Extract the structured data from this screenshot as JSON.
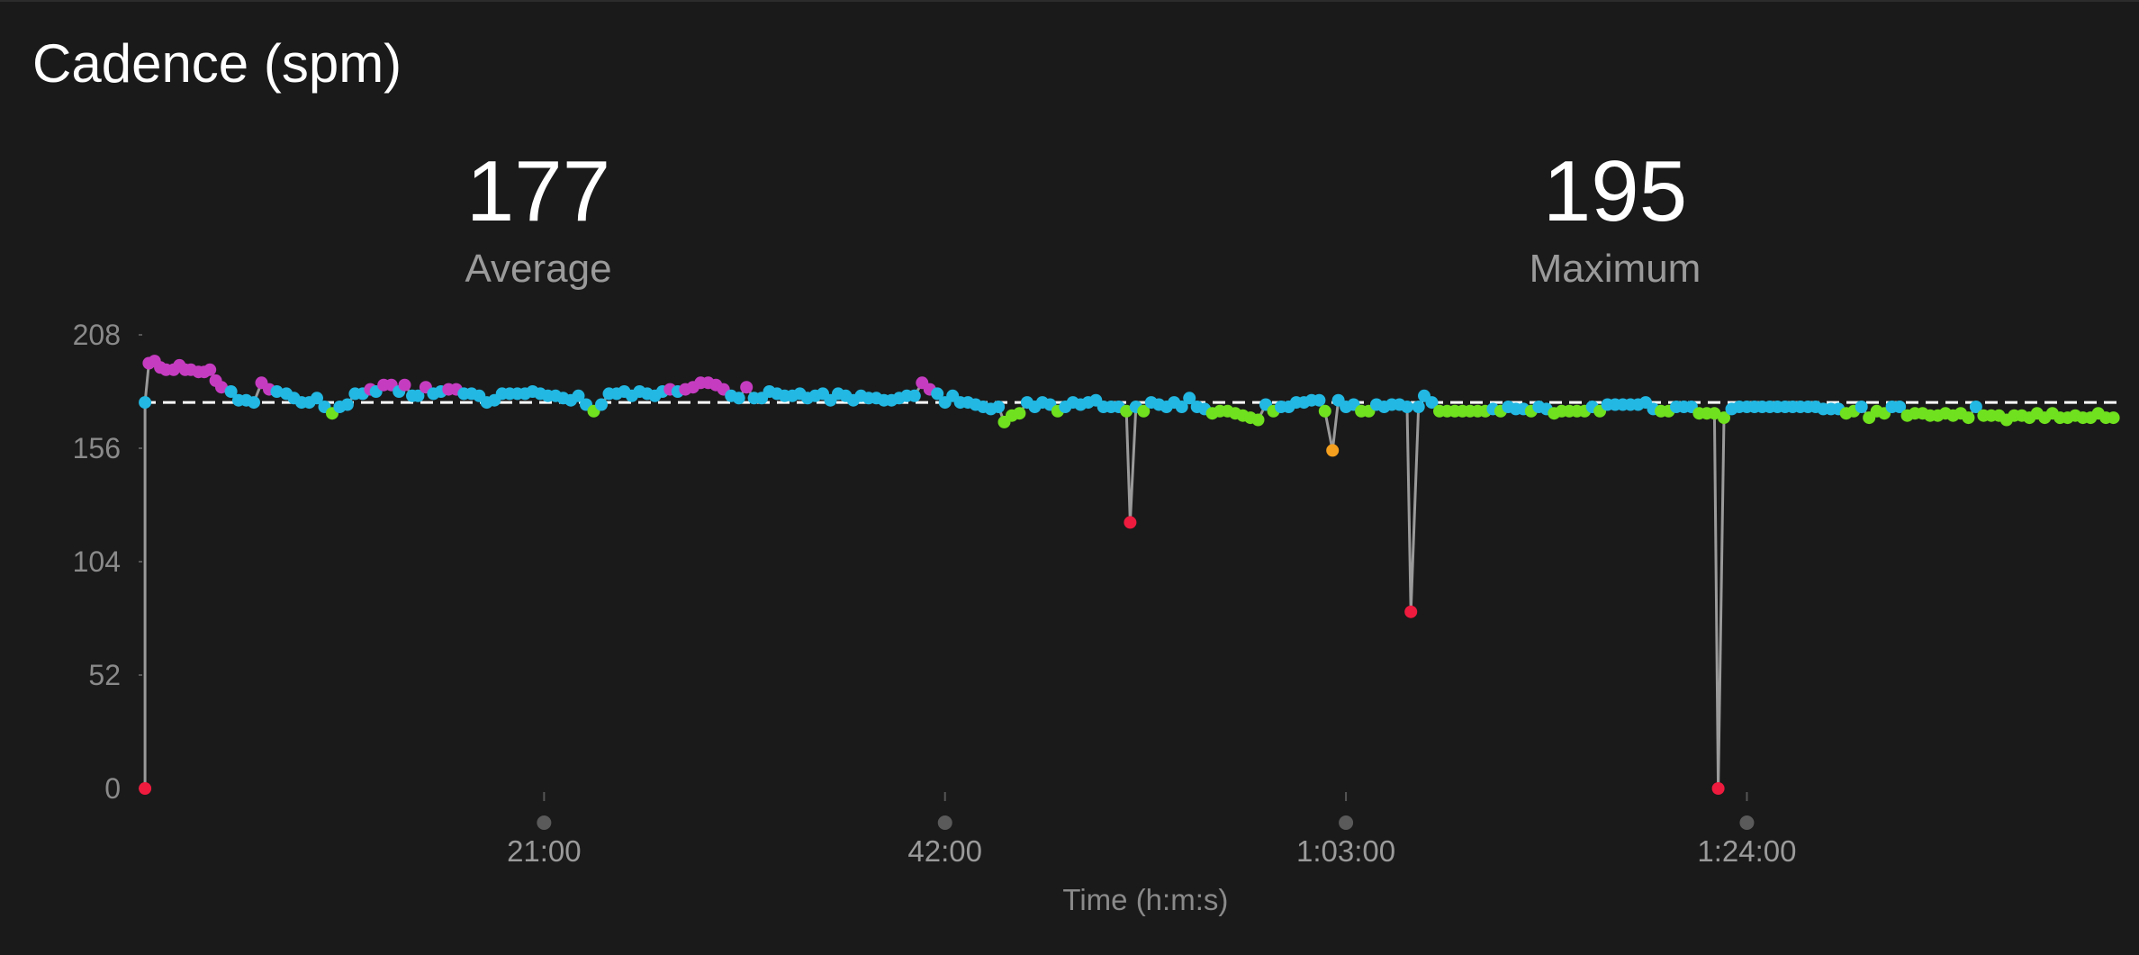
{
  "title": "Cadence (spm)",
  "stats": [
    {
      "value": "177",
      "label": "Average"
    },
    {
      "value": "195",
      "label": "Maximum"
    }
  ],
  "chart_data": {
    "type": "scatter",
    "title": "Cadence (spm)",
    "xlabel": "Time (h:m:s)",
    "ylabel": "",
    "unit": "spm",
    "xlim_minutes": [
      0,
      103.5
    ],
    "ylim": [
      0,
      208
    ],
    "yticks": [
      0,
      52,
      104,
      156,
      208
    ],
    "xticks": [
      {
        "minutes": 21,
        "label": "21:00"
      },
      {
        "minutes": 42,
        "label": "42:00"
      },
      {
        "minutes": 63,
        "label": "1:03:00"
      },
      {
        "minutes": 84,
        "label": "1:24:00"
      }
    ],
    "average_line": 177,
    "colors": {
      "background": "#1a1a1a",
      "line": "#9a9a9a",
      "average": "#ffffff",
      "purple": "#c53cc0",
      "blue": "#22b8e3",
      "green": "#6fe11e",
      "orange": "#f5a01f",
      "red": "#ee1b3e"
    },
    "grid": false,
    "legend": "none",
    "points_minutes_spm": [
      [
        0.1,
        0
      ],
      [
        0.1,
        177
      ],
      [
        0.3,
        195
      ],
      [
        0.6,
        196
      ],
      [
        0.9,
        193
      ],
      [
        1.2,
        192
      ],
      [
        1.6,
        192
      ],
      [
        1.9,
        194
      ],
      [
        2.2,
        192
      ],
      [
        2.5,
        192
      ],
      [
        2.9,
        191
      ],
      [
        3.2,
        191
      ],
      [
        3.5,
        192
      ],
      [
        3.8,
        187
      ],
      [
        4.1,
        184
      ],
      [
        4.6,
        182
      ],
      [
        5.0,
        178
      ],
      [
        5.4,
        178
      ],
      [
        5.8,
        177
      ],
      [
        6.2,
        186
      ],
      [
        6.6,
        183
      ],
      [
        7.0,
        182
      ],
      [
        7.5,
        181
      ],
      [
        7.9,
        179
      ],
      [
        8.3,
        177
      ],
      [
        8.7,
        177
      ],
      [
        9.1,
        179
      ],
      [
        9.5,
        175
      ],
      [
        9.9,
        172
      ],
      [
        10.3,
        175
      ],
      [
        10.7,
        176
      ],
      [
        11.1,
        181
      ],
      [
        11.5,
        181
      ],
      [
        11.9,
        183
      ],
      [
        12.2,
        182
      ],
      [
        12.6,
        185
      ],
      [
        13.0,
        185
      ],
      [
        13.4,
        182
      ],
      [
        13.7,
        185
      ],
      [
        14.1,
        180
      ],
      [
        14.4,
        180
      ],
      [
        14.8,
        184
      ],
      [
        15.2,
        181
      ],
      [
        15.6,
        182
      ],
      [
        16.0,
        183
      ],
      [
        16.4,
        183
      ],
      [
        16.8,
        181
      ],
      [
        17.2,
        181
      ],
      [
        17.6,
        180
      ],
      [
        18.0,
        177
      ],
      [
        18.4,
        178
      ],
      [
        18.8,
        181
      ],
      [
        19.2,
        181
      ],
      [
        19.6,
        181
      ],
      [
        20.0,
        181
      ],
      [
        20.4,
        182
      ],
      [
        20.8,
        181
      ],
      [
        21.2,
        180
      ],
      [
        21.6,
        180
      ],
      [
        22.0,
        179
      ],
      [
        22.4,
        178
      ],
      [
        22.8,
        180
      ],
      [
        23.2,
        176
      ],
      [
        23.6,
        173
      ],
      [
        24.0,
        176
      ],
      [
        24.4,
        181
      ],
      [
        24.8,
        181
      ],
      [
        25.2,
        182
      ],
      [
        25.6,
        180
      ],
      [
        26.0,
        182
      ],
      [
        26.4,
        181
      ],
      [
        26.8,
        180
      ],
      [
        27.2,
        182
      ],
      [
        27.6,
        183
      ],
      [
        28.0,
        182
      ],
      [
        28.4,
        183
      ],
      [
        28.8,
        184
      ],
      [
        29.2,
        186
      ],
      [
        29.6,
        186
      ],
      [
        30.0,
        185
      ],
      [
        30.4,
        183
      ],
      [
        30.8,
        180
      ],
      [
        31.2,
        179
      ],
      [
        31.6,
        184
      ],
      [
        32.0,
        179
      ],
      [
        32.4,
        179
      ],
      [
        32.8,
        182
      ],
      [
        33.2,
        181
      ],
      [
        33.6,
        180
      ],
      [
        34.0,
        180
      ],
      [
        34.4,
        181
      ],
      [
        34.8,
        179
      ],
      [
        35.2,
        180
      ],
      [
        35.6,
        181
      ],
      [
        36.0,
        178
      ],
      [
        36.4,
        181
      ],
      [
        36.8,
        180
      ],
      [
        37.2,
        178
      ],
      [
        37.6,
        180
      ],
      [
        38.0,
        179
      ],
      [
        38.4,
        179
      ],
      [
        38.8,
        178
      ],
      [
        39.2,
        178
      ],
      [
        39.6,
        179
      ],
      [
        40.0,
        180
      ],
      [
        40.4,
        180
      ],
      [
        40.8,
        186
      ],
      [
        41.2,
        183
      ],
      [
        41.6,
        181
      ],
      [
        42.0,
        177
      ],
      [
        42.4,
        180
      ],
      [
        42.8,
        177
      ],
      [
        43.2,
        177
      ],
      [
        43.6,
        176
      ],
      [
        44.0,
        175
      ],
      [
        44.4,
        174
      ],
      [
        44.8,
        175
      ],
      [
        45.1,
        168
      ],
      [
        45.5,
        171
      ],
      [
        45.9,
        172
      ],
      [
        46.3,
        177
      ],
      [
        46.7,
        175
      ],
      [
        47.1,
        177
      ],
      [
        47.5,
        176
      ],
      [
        47.9,
        173
      ],
      [
        48.3,
        175
      ],
      [
        48.7,
        177
      ],
      [
        49.1,
        176
      ],
      [
        49.5,
        177
      ],
      [
        49.9,
        178
      ],
      [
        50.3,
        175
      ],
      [
        50.7,
        175
      ],
      [
        51.1,
        175
      ],
      [
        51.5,
        173
      ],
      [
        51.7,
        122
      ],
      [
        52.0,
        175
      ],
      [
        52.4,
        173
      ],
      [
        52.8,
        177
      ],
      [
        53.2,
        176
      ],
      [
        53.6,
        175
      ],
      [
        54.0,
        177
      ],
      [
        54.4,
        175
      ],
      [
        54.8,
        179
      ],
      [
        55.2,
        175
      ],
      [
        55.6,
        174
      ],
      [
        56.0,
        172
      ],
      [
        56.4,
        173
      ],
      [
        56.8,
        173
      ],
      [
        57.2,
        172
      ],
      [
        57.6,
        171
      ],
      [
        58.0,
        170
      ],
      [
        58.4,
        169
      ],
      [
        58.8,
        176
      ],
      [
        59.2,
        173
      ],
      [
        59.6,
        175
      ],
      [
        60.0,
        175
      ],
      [
        60.4,
        177
      ],
      [
        60.8,
        177
      ],
      [
        61.2,
        178
      ],
      [
        61.6,
        178
      ],
      [
        61.9,
        173
      ],
      [
        62.3,
        155
      ],
      [
        62.6,
        178
      ],
      [
        63.0,
        175
      ],
      [
        63.4,
        176
      ],
      [
        63.8,
        173
      ],
      [
        64.2,
        173
      ],
      [
        64.6,
        176
      ],
      [
        65.0,
        175
      ],
      [
        65.4,
        176
      ],
      [
        65.8,
        176
      ],
      [
        66.2,
        175
      ],
      [
        66.4,
        81
      ],
      [
        66.8,
        175
      ],
      [
        67.1,
        180
      ],
      [
        67.5,
        177
      ],
      [
        67.9,
        173
      ],
      [
        68.3,
        173
      ],
      [
        68.7,
        173
      ],
      [
        69.1,
        173
      ],
      [
        69.5,
        173
      ],
      [
        69.9,
        173
      ],
      [
        70.3,
        173
      ],
      [
        70.7,
        174
      ],
      [
        71.1,
        173
      ],
      [
        71.5,
        175
      ],
      [
        71.9,
        174
      ],
      [
        72.3,
        174
      ],
      [
        72.7,
        173
      ],
      [
        73.1,
        175
      ],
      [
        73.5,
        174
      ],
      [
        73.9,
        172
      ],
      [
        74.3,
        173
      ],
      [
        74.7,
        173
      ],
      [
        75.1,
        173
      ],
      [
        75.5,
        173
      ],
      [
        75.9,
        175
      ],
      [
        76.3,
        173
      ],
      [
        76.7,
        176
      ],
      [
        77.1,
        176
      ],
      [
        77.5,
        176
      ],
      [
        77.9,
        176
      ],
      [
        78.3,
        176
      ],
      [
        78.7,
        177
      ],
      [
        79.1,
        174
      ],
      [
        79.5,
        173
      ],
      [
        79.9,
        173
      ],
      [
        80.3,
        175
      ],
      [
        80.7,
        175
      ],
      [
        81.1,
        175
      ],
      [
        81.5,
        172
      ],
      [
        81.9,
        172
      ],
      [
        82.3,
        172
      ],
      [
        82.5,
        0
      ],
      [
        82.8,
        170
      ],
      [
        83.2,
        174
      ],
      [
        83.6,
        175
      ],
      [
        84.0,
        175
      ],
      [
        84.4,
        175
      ],
      [
        84.8,
        175
      ],
      [
        85.2,
        175
      ],
      [
        85.6,
        175
      ],
      [
        86.0,
        175
      ],
      [
        86.4,
        175
      ],
      [
        86.8,
        175
      ],
      [
        87.2,
        175
      ],
      [
        87.6,
        175
      ],
      [
        88.0,
        174
      ],
      [
        88.4,
        174
      ],
      [
        88.8,
        174
      ],
      [
        89.2,
        172
      ],
      [
        89.6,
        173
      ],
      [
        90.0,
        175
      ],
      [
        90.4,
        170
      ],
      [
        90.8,
        173
      ],
      [
        91.2,
        172
      ],
      [
        91.6,
        175
      ],
      [
        92.0,
        175
      ],
      [
        92.4,
        171
      ],
      [
        92.8,
        172
      ],
      [
        93.2,
        172
      ],
      [
        93.6,
        171
      ],
      [
        94.0,
        171
      ],
      [
        94.4,
        172
      ],
      [
        94.8,
        171
      ],
      [
        95.2,
        172
      ],
      [
        95.6,
        170
      ],
      [
        96.0,
        175
      ],
      [
        96.4,
        171
      ],
      [
        96.8,
        171
      ],
      [
        97.2,
        171
      ],
      [
        97.6,
        169
      ],
      [
        98.0,
        171
      ],
      [
        98.4,
        171
      ],
      [
        98.8,
        170
      ],
      [
        99.2,
        172
      ],
      [
        99.6,
        170
      ],
      [
        100.0,
        172
      ],
      [
        100.4,
        170
      ],
      [
        100.8,
        170
      ],
      [
        101.2,
        171
      ],
      [
        101.6,
        170
      ],
      [
        102.0,
        170
      ],
      [
        102.4,
        172
      ],
      [
        102.8,
        170
      ],
      [
        103.2,
        170
      ]
    ]
  }
}
